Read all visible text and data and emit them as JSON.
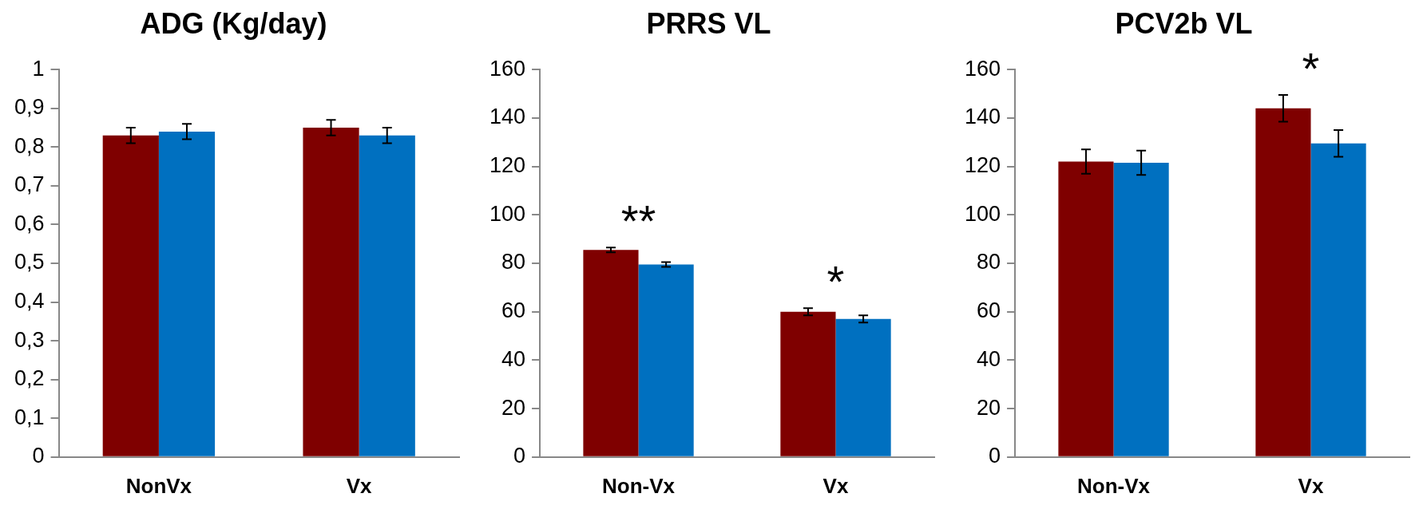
{
  "chart_data": [
    {
      "type": "bar",
      "title": "ADG (Kg/day)",
      "categories": [
        "NonVx",
        "Vx"
      ],
      "series": [
        {
          "color": "#7f0000",
          "values": [
            0.83,
            0.85
          ],
          "errors": [
            0.02,
            0.02
          ]
        },
        {
          "color": "#0070c0",
          "values": [
            0.84,
            0.83
          ],
          "errors": [
            0.02,
            0.02
          ]
        }
      ],
      "ylim": [
        0,
        1
      ],
      "yticks": [
        0,
        {
          "value": 0.1,
          "label": "0,1"
        },
        {
          "value": 0.2,
          "label": "0,2"
        },
        {
          "value": 0.3,
          "label": "0,3"
        },
        {
          "value": 0.4,
          "label": "0,4"
        },
        {
          "value": 0.5,
          "label": "0,5"
        },
        {
          "value": 0.6,
          "label": "0,6"
        },
        {
          "value": 0.7,
          "label": "0,7"
        },
        {
          "value": 0.8,
          "label": "0,8"
        },
        {
          "value": 0.9,
          "label": "0,9"
        },
        1
      ],
      "grid": false,
      "legend": false
    },
    {
      "type": "bar",
      "title": "PRRS VL",
      "categories": [
        "Non-Vx",
        "Vx"
      ],
      "series": [
        {
          "color": "#7f0000",
          "values": [
            85.5,
            60
          ],
          "errors": [
            1,
            1.5
          ]
        },
        {
          "color": "#0070c0",
          "values": [
            79.5,
            57
          ],
          "errors": [
            1,
            1.5
          ]
        }
      ],
      "ylim": [
        0,
        160
      ],
      "yticks": [
        0,
        20,
        40,
        60,
        80,
        100,
        120,
        140,
        160
      ],
      "grid": false,
      "legend": false,
      "annotations": [
        "**",
        "*"
      ]
    },
    {
      "type": "bar",
      "title": "PCV2b VL",
      "categories": [
        "Non-Vx",
        "Vx"
      ],
      "series": [
        {
          "color": "#7f0000",
          "values": [
            122,
            144
          ],
          "errors": [
            5,
            5.5
          ]
        },
        {
          "color": "#0070c0",
          "values": [
            121.5,
            129.5
          ],
          "errors": [
            5,
            5.5
          ]
        }
      ],
      "ylim": [
        0,
        160
      ],
      "yticks": [
        0,
        20,
        40,
        60,
        80,
        100,
        120,
        140,
        160
      ],
      "grid": false,
      "legend": false,
      "annotations": [
        "*"
      ]
    }
  ]
}
